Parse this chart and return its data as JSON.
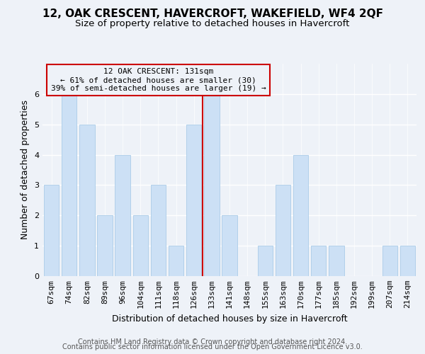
{
  "title": "12, OAK CRESCENT, HAVERCROFT, WAKEFIELD, WF4 2QF",
  "subtitle": "Size of property relative to detached houses in Havercroft",
  "xlabel": "Distribution of detached houses by size in Havercroft",
  "ylabel": "Number of detached properties",
  "categories": [
    "67sqm",
    "74sqm",
    "82sqm",
    "89sqm",
    "96sqm",
    "104sqm",
    "111sqm",
    "118sqm",
    "126sqm",
    "133sqm",
    "141sqm",
    "148sqm",
    "155sqm",
    "163sqm",
    "170sqm",
    "177sqm",
    "185sqm",
    "192sqm",
    "199sqm",
    "207sqm",
    "214sqm"
  ],
  "values": [
    3,
    6,
    5,
    2,
    4,
    2,
    3,
    1,
    5,
    6,
    2,
    0,
    1,
    3,
    4,
    1,
    1,
    0,
    0,
    1,
    1
  ],
  "bar_color": "#cce0f5",
  "bar_edgecolor": "#aacce8",
  "vline_index": 8.5,
  "annotation_text": "12 OAK CRESCENT: 131sqm\n← 61% of detached houses are smaller (30)\n39% of semi-detached houses are larger (19) →",
  "annotation_box_edgecolor": "#cc0000",
  "vline_color": "#cc0000",
  "ylim": [
    0,
    7
  ],
  "yticks": [
    0,
    1,
    2,
    3,
    4,
    5,
    6
  ],
  "footer1": "Contains HM Land Registry data © Crown copyright and database right 2024.",
  "footer2": "Contains public sector information licensed under the Open Government Licence v3.0.",
  "bg_color": "#eef2f8",
  "grid_color": "#ffffff",
  "title_fontsize": 11,
  "subtitle_fontsize": 9.5,
  "axis_label_fontsize": 9,
  "tick_fontsize": 8,
  "footer_fontsize": 7,
  "annotation_fontsize": 8
}
